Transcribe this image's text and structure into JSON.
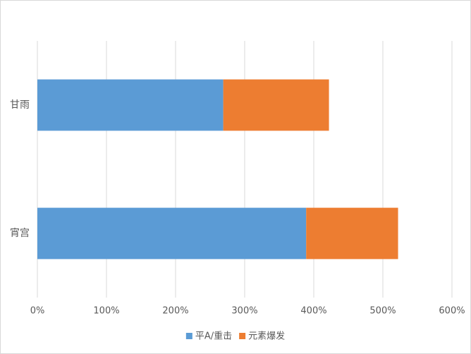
{
  "chart_data": {
    "type": "stacked-barh",
    "categories": [
      "甘雨",
      "宵宫"
    ],
    "series": [
      {
        "name": "平A/重击",
        "color": "#5b9bd5",
        "values": [
          269,
          389
        ]
      },
      {
        "name": "元素爆发",
        "color": "#ed7d31",
        "values": [
          153,
          133
        ]
      }
    ],
    "xlim": [
      0,
      600
    ],
    "xticks": [
      {
        "value": 0,
        "label": "0%"
      },
      {
        "value": 100,
        "label": "100%"
      },
      {
        "value": 200,
        "label": "200%"
      },
      {
        "value": 300,
        "label": "300%"
      },
      {
        "value": 400,
        "label": "400%"
      },
      {
        "value": 500,
        "label": "500%"
      },
      {
        "value": 600,
        "label": "600%"
      }
    ],
    "grid": true,
    "legend": "bottom"
  }
}
